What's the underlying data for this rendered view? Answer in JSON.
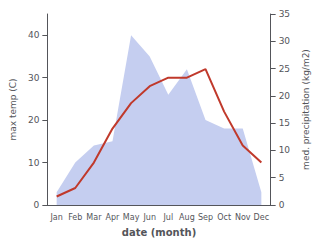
{
  "chart_data": {
    "type": "line",
    "categories": [
      "Jan",
      "Feb",
      "Mar",
      "Apr",
      "May",
      "Jun",
      "Jul",
      "Aug",
      "Sep",
      "Oct",
      "Nov",
      "Dec"
    ],
    "series": [
      {
        "type": "area",
        "color": "#c5cef0",
        "values": [
          3,
          10,
          14,
          15,
          40,
          35,
          26,
          32,
          20,
          18,
          18,
          3
        ]
      },
      {
        "type": "line",
        "color": "#c0392b",
        "values": [
          2,
          4,
          10,
          18,
          24,
          28,
          30,
          30,
          32,
          22,
          14,
          10
        ]
      }
    ],
    "xlabel": "date (month)",
    "ylabel": "max temp (C)",
    "y2label": "med. precipitation (kg/m2)",
    "ylim": [
      0,
      45
    ],
    "yticks": [
      0,
      10,
      20,
      30,
      40
    ],
    "y2lim": [
      0,
      35
    ],
    "y2ticks": [
      0,
      5,
      10,
      15,
      20,
      25,
      30,
      35
    ],
    "grid": false
  }
}
